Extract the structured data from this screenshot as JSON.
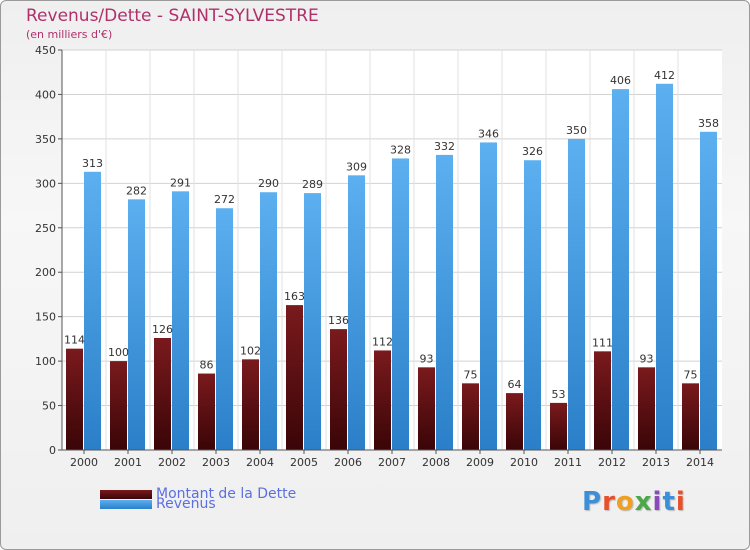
{
  "title": "Revenus/Dette - SAINT-SYLVESTRE",
  "subtitle": "(en milliers d'€)",
  "logo": {
    "text": "Proxiti",
    "colors": [
      "#3a8fd6",
      "#e8502a",
      "#f0a020",
      "#4aa84a",
      "#8a4ab8",
      "#3a8fd6",
      "#e8502a"
    ]
  },
  "colors": {
    "dette": "#6a1015",
    "revenus": "#3a9be6",
    "accent": "#b0306a",
    "legend_text": "#5b6fe0"
  },
  "chart_data": {
    "type": "bar",
    "categories": [
      "2000",
      "2001",
      "2002",
      "2003",
      "2004",
      "2005",
      "2006",
      "2007",
      "2008",
      "2009",
      "2010",
      "2011",
      "2012",
      "2013",
      "2014"
    ],
    "series": [
      {
        "name": "Montant de la Dette",
        "values": [
          114,
          100,
          126,
          86,
          102,
          163,
          136,
          112,
          93,
          75,
          64,
          53,
          111,
          93,
          75
        ]
      },
      {
        "name": "Revenus",
        "values": [
          313,
          282,
          291,
          272,
          290,
          289,
          309,
          328,
          332,
          346,
          326,
          350,
          406,
          412,
          358
        ]
      }
    ],
    "ylim": [
      0,
      450
    ],
    "yticks": [
      0,
      50,
      100,
      150,
      200,
      250,
      300,
      350,
      400,
      450
    ],
    "grid": true,
    "legend": "bottom-left"
  }
}
